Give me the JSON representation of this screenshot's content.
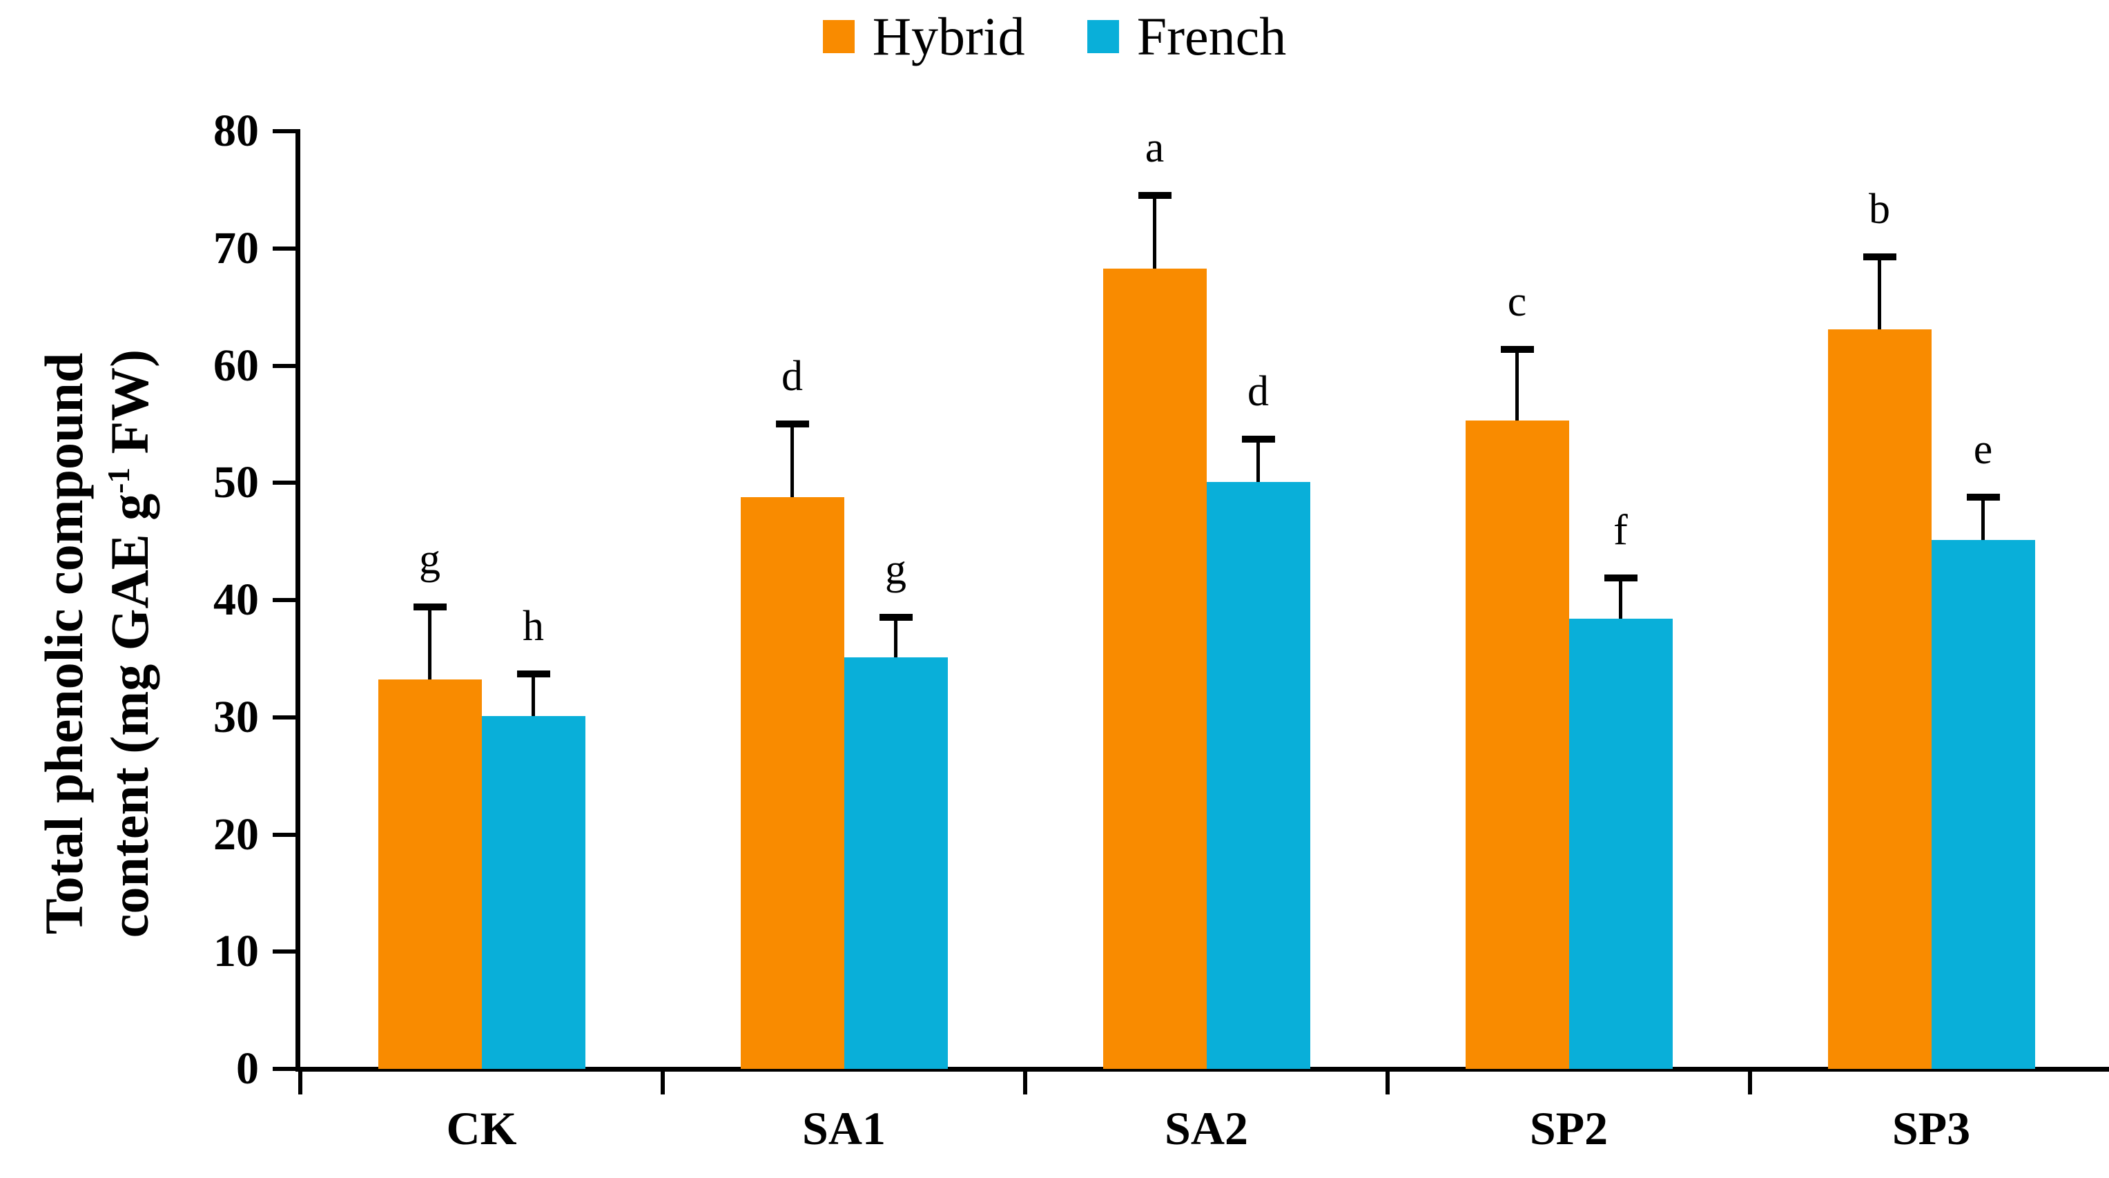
{
  "legend": {
    "items": [
      {
        "label": "Hybrid",
        "color": "#F98B00"
      },
      {
        "label": "French",
        "color": "#09AFD9"
      }
    ]
  },
  "y_axis": {
    "label_line1": "Total phenolic compound",
    "label_line2_pre": "content (mg GAE g",
    "label_sup": "-1",
    "label_line2_post": " FW)"
  },
  "chart_data": {
    "type": "bar",
    "title": "",
    "xlabel": "",
    "ylabel": "Total phenolic compound content (mg GAE g-1 FW)",
    "categories": [
      "CK",
      "SA1",
      "SA2",
      "SP2",
      "SP3"
    ],
    "series": [
      {
        "name": "Hybrid",
        "color": "#F98B00",
        "values": [
          33.2,
          48.8,
          68.3,
          55.3,
          63.1
        ],
        "errors_upper": [
          6.2,
          6.2,
          6.2,
          6.1,
          6.2
        ],
        "letters": [
          "g",
          "d",
          "a",
          "c",
          "b"
        ]
      },
      {
        "name": "French",
        "color": "#09AFD9",
        "values": [
          30.1,
          35.1,
          50.1,
          38.4,
          45.1
        ],
        "errors_upper": [
          3.6,
          3.4,
          3.6,
          3.5,
          3.7
        ],
        "letters": [
          "h",
          "g",
          "d",
          "f",
          "e"
        ]
      }
    ],
    "ylim": [
      0,
      80
    ],
    "yticks": [
      0,
      10,
      20,
      30,
      40,
      50,
      60,
      70,
      80
    ],
    "grid": false,
    "legend_position": "top-center",
    "error_bars": "upper-only"
  }
}
